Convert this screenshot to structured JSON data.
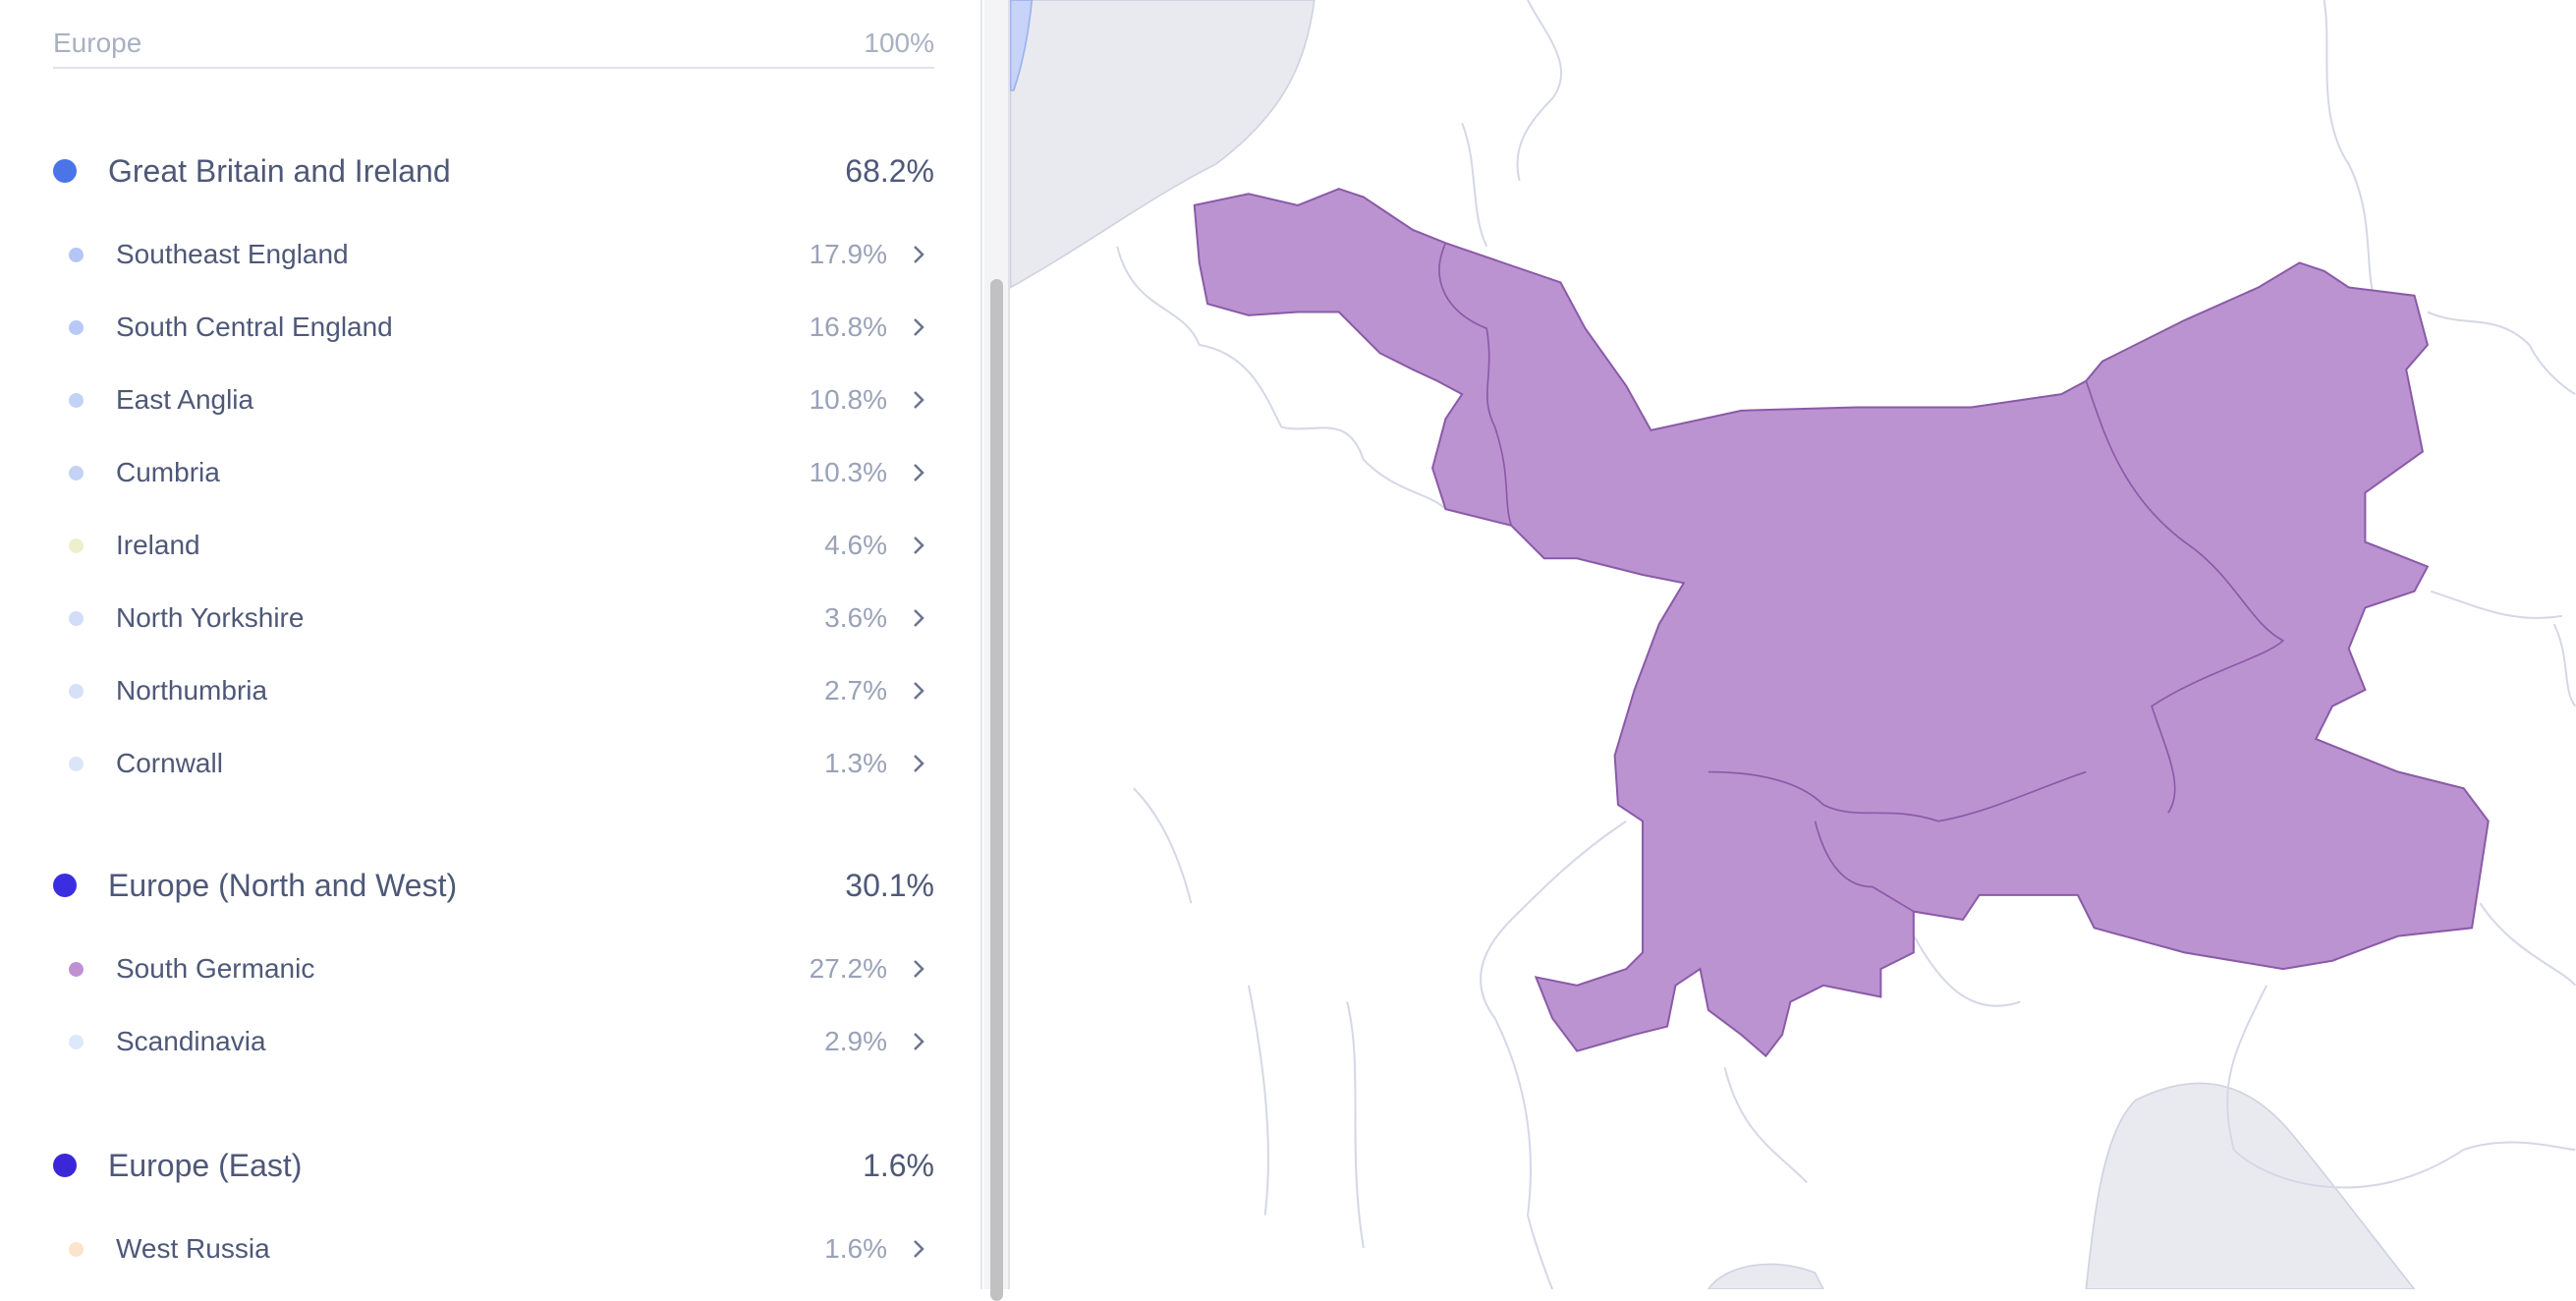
{
  "panel": {
    "header": {
      "label": "Europe",
      "percent": "100%"
    },
    "groups": [
      {
        "name": "Great Britain and Ireland",
        "percent": "68.2%",
        "color": "#4a74e8",
        "regions": [
          {
            "name": "Southeast England",
            "percent": "17.9%",
            "color": "#b4c6f5"
          },
          {
            "name": "South Central England",
            "percent": "16.8%",
            "color": "#b8c9f5"
          },
          {
            "name": "East Anglia",
            "percent": "10.8%",
            "color": "#c2d1f6"
          },
          {
            "name": "Cumbria",
            "percent": "10.3%",
            "color": "#c4d2f6"
          },
          {
            "name": "Ireland",
            "percent": "4.6%",
            "color": "#eef0cc"
          },
          {
            "name": "North Yorkshire",
            "percent": "3.6%",
            "color": "#d2ddf8"
          },
          {
            "name": "Northumbria",
            "percent": "2.7%",
            "color": "#d6e0f8"
          },
          {
            "name": "Cornwall",
            "percent": "1.3%",
            "color": "#dce4f9"
          }
        ]
      },
      {
        "name": "Europe (North and West)",
        "percent": "30.1%",
        "color": "#3a2ee0",
        "regions": [
          {
            "name": "South Germanic",
            "percent": "27.2%",
            "color": "#c091d2"
          },
          {
            "name": "Scandinavia",
            "percent": "2.9%",
            "color": "#dbe9fb"
          }
        ]
      },
      {
        "name": "Europe (East)",
        "percent": "1.6%",
        "color": "#3b27d8",
        "regions": [
          {
            "name": "West Russia",
            "percent": "1.6%",
            "color": "#fce3cb"
          }
        ]
      }
    ]
  }
}
